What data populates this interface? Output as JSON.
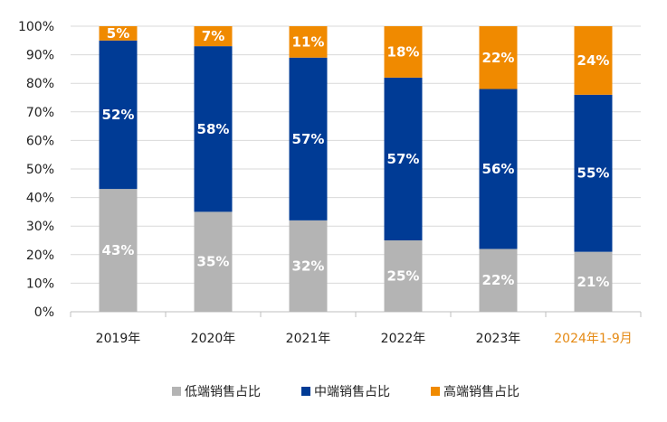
{
  "chart_data": {
    "type": "bar",
    "stacked": true,
    "categories": [
      "2019年",
      "2020年",
      "2021年",
      "2022年",
      "2023年",
      "2024年1-9月"
    ],
    "highlight_category_color": "#e58a14",
    "series": [
      {
        "name": "低端销售占比",
        "values": [
          43,
          35,
          32,
          25,
          22,
          21
        ],
        "color": "#b4b4b4"
      },
      {
        "name": "中端销售占比",
        "values": [
          52,
          58,
          57,
          57,
          56,
          55
        ],
        "color": "#003b95"
      },
      {
        "name": "高端销售占比",
        "values": [
          5,
          7,
          11,
          18,
          22,
          24
        ],
        "color": "#f08a00"
      }
    ],
    "ylim": [
      0,
      100
    ],
    "yticks": [
      "0%",
      "10%",
      "20%",
      "30%",
      "40%",
      "50%",
      "60%",
      "70%",
      "80%",
      "90%",
      "100%"
    ],
    "grid": true,
    "legend": "bottom",
    "title": "",
    "xlabel": "",
    "ylabel": ""
  }
}
